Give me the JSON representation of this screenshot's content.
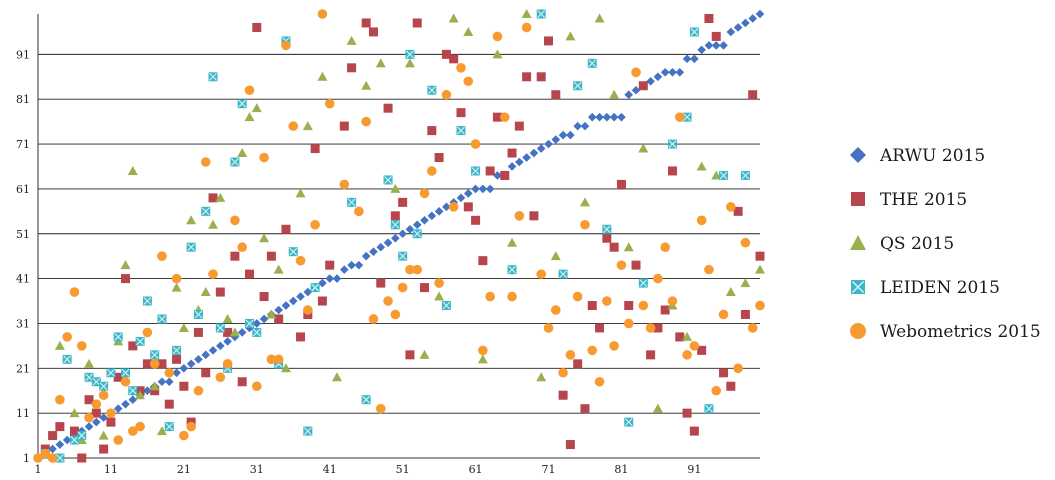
{
  "chart_data": {
    "type": "scatter",
    "title": "",
    "xlabel": "",
    "ylabel": "",
    "xlim": [
      1,
      100
    ],
    "ylim": [
      1,
      100
    ],
    "x_ticks": [
      1,
      11,
      21,
      31,
      41,
      51,
      61,
      71,
      81,
      91
    ],
    "y_ticks": [
      1,
      11,
      21,
      31,
      41,
      51,
      61,
      71,
      81,
      91
    ],
    "grid": "horizontal",
    "legend_position": "right",
    "colors": {
      "ARWU 2015": "#4472c4",
      "THE 2015": "#b7454d",
      "QS 2015": "#98b04e",
      "LEIDEN 2015": "#3cb6c7",
      "Webometrics 2015": "#f79a2f"
    },
    "series": [
      {
        "name": "ARWU 2015",
        "marker": "diamond",
        "x": [
          1,
          2,
          3,
          4,
          5,
          6,
          7,
          8,
          9,
          10,
          11,
          12,
          13,
          14,
          15,
          16,
          17,
          18,
          19,
          20,
          21,
          22,
          23,
          24,
          25,
          26,
          27,
          28,
          29,
          30,
          31,
          32,
          33,
          34,
          35,
          36,
          37,
          38,
          39,
          40,
          41,
          42,
          43,
          44,
          45,
          46,
          47,
          48,
          49,
          50,
          51,
          52,
          53,
          54,
          55,
          56,
          57,
          58,
          59,
          60,
          61,
          62,
          63,
          64,
          65,
          66,
          67,
          68,
          69,
          70,
          71,
          72,
          73,
          74,
          75,
          76,
          77,
          78,
          79,
          80,
          81,
          82,
          83,
          84,
          85,
          86,
          87,
          88,
          89,
          90,
          91,
          92,
          93,
          94,
          95,
          96,
          97,
          98,
          99,
          100
        ],
        "y": [
          1,
          2,
          3,
          4,
          5,
          6,
          7,
          8,
          9,
          10,
          11,
          12,
          13,
          14,
          15,
          16,
          17,
          18,
          18,
          20,
          21,
          22,
          23,
          24,
          25,
          26,
          27,
          28,
          29,
          30,
          31,
          32,
          33,
          34,
          35,
          36,
          37,
          38,
          39,
          40,
          41,
          41,
          43,
          44,
          44,
          46,
          47,
          48,
          49,
          50,
          51,
          52,
          53,
          54,
          55,
          56,
          57,
          58,
          59,
          60,
          61,
          61,
          61,
          64,
          64,
          66,
          67,
          68,
          69,
          70,
          71,
          72,
          73,
          73,
          75,
          75,
          77,
          77,
          77,
          77,
          77,
          82,
          83,
          84,
          85,
          86,
          87,
          87,
          87,
          90,
          90,
          92,
          93,
          93,
          93,
          96,
          97,
          98,
          99,
          100
        ]
      },
      {
        "name": "THE 2015",
        "marker": "square",
        "x": [
          2,
          3,
          4,
          6,
          7,
          8,
          9,
          10,
          11,
          12,
          13,
          14,
          15,
          16,
          17,
          18,
          19,
          20,
          21,
          22,
          23,
          24,
          25,
          26,
          27,
          28,
          29,
          30,
          31,
          32,
          33,
          34,
          35,
          37,
          38,
          39,
          40,
          41,
          43,
          44,
          46,
          47,
          48,
          49,
          50,
          51,
          52,
          53,
          54,
          55,
          56,
          57,
          58,
          59,
          60,
          61,
          62,
          63,
          64,
          65,
          66,
          67,
          68,
          69,
          70,
          71,
          72,
          73,
          74,
          75,
          76,
          77,
          78,
          79,
          80,
          81,
          82,
          83,
          84,
          85,
          86,
          87,
          88,
          89,
          90,
          91,
          92,
          93,
          94,
          95,
          96,
          97,
          98,
          99,
          100
        ],
        "y": [
          3,
          6,
          8,
          7,
          1,
          14,
          11,
          3,
          9,
          19,
          41,
          26,
          16,
          22,
          16,
          22,
          13,
          23,
          17,
          9,
          29,
          20,
          59,
          38,
          29,
          46,
          18,
          42,
          97,
          37,
          46,
          32,
          52,
          28,
          33,
          70,
          36,
          44,
          75,
          88,
          98,
          96,
          40,
          79,
          55,
          58,
          24,
          98,
          39,
          74,
          68,
          91,
          90,
          78,
          57,
          54,
          45,
          65,
          77,
          64,
          69,
          75,
          86,
          55,
          86,
          94,
          82,
          15,
          4,
          22,
          12,
          35,
          30,
          50,
          48,
          62,
          35,
          44,
          84,
          24,
          30,
          34,
          65,
          28,
          11,
          7,
          25,
          99,
          95,
          20,
          17,
          56,
          33,
          82,
          46
        ]
      },
      {
        "name": "QS 2015",
        "marker": "triangle",
        "x": [
          4,
          6,
          7,
          8,
          10,
          12,
          13,
          14,
          15,
          17,
          18,
          20,
          21,
          22,
          23,
          24,
          25,
          26,
          27,
          28,
          29,
          30,
          31,
          32,
          33,
          34,
          35,
          37,
          38,
          40,
          42,
          44,
          46,
          48,
          50,
          52,
          54,
          56,
          58,
          60,
          62,
          64,
          66,
          68,
          70,
          72,
          74,
          76,
          78,
          80,
          82,
          84,
          86,
          88,
          90,
          92,
          94,
          96,
          98,
          100
        ],
        "y": [
          26,
          11,
          5,
          22,
          6,
          27,
          44,
          65,
          15,
          17,
          7,
          39,
          30,
          54,
          34,
          38,
          53,
          59,
          32,
          29,
          69,
          77,
          79,
          50,
          33,
          43,
          21,
          60,
          75,
          86,
          19,
          94,
          84,
          89,
          61,
          89,
          24,
          37,
          99,
          96,
          23,
          91,
          49,
          100,
          19,
          46,
          95,
          58,
          99,
          82,
          48,
          70,
          12,
          35,
          28,
          66,
          64,
          38,
          40,
          43
        ]
      },
      {
        "name": "LEIDEN 2015",
        "marker": "x-square",
        "x": [
          2,
          4,
          5,
          6,
          7,
          8,
          9,
          10,
          11,
          12,
          13,
          14,
          15,
          16,
          17,
          18,
          19,
          20,
          22,
          23,
          24,
          25,
          26,
          27,
          28,
          29,
          30,
          31,
          34,
          35,
          36,
          38,
          39,
          44,
          46,
          49,
          50,
          51,
          52,
          53,
          55,
          57,
          59,
          61,
          66,
          70,
          73,
          75,
          77,
          79,
          82,
          84,
          88,
          90,
          91,
          93,
          95,
          98
        ],
        "y": [
          2,
          1,
          23,
          5,
          6,
          19,
          18,
          17,
          20,
          28,
          20,
          16,
          27,
          36,
          24,
          32,
          8,
          25,
          48,
          33,
          56,
          86,
          30,
          21,
          67,
          80,
          31,
          29,
          22,
          94,
          47,
          7,
          39,
          58,
          14,
          63,
          53,
          46,
          91,
          51,
          83,
          35,
          74,
          65,
          43,
          100,
          42,
          84,
          89,
          52,
          9,
          40,
          71,
          77,
          96,
          12,
          64,
          64
        ]
      },
      {
        "name": "Webometrics 2015",
        "marker": "circle",
        "x": [
          1,
          2,
          3,
          4,
          5,
          6,
          7,
          8,
          9,
          10,
          11,
          12,
          13,
          14,
          15,
          16,
          17,
          18,
          19,
          20,
          21,
          22,
          23,
          24,
          25,
          26,
          27,
          28,
          29,
          30,
          31,
          32,
          33,
          34,
          35,
          36,
          37,
          38,
          39,
          40,
          41,
          43,
          45,
          46,
          47,
          48,
          49,
          50,
          51,
          52,
          53,
          54,
          55,
          56,
          57,
          58,
          59,
          60,
          61,
          62,
          63,
          64,
          65,
          66,
          67,
          68,
          70,
          71,
          72,
          73,
          74,
          75,
          76,
          77,
          78,
          79,
          80,
          81,
          82,
          83,
          84,
          85,
          86,
          87,
          88,
          89,
          90,
          91,
          92,
          93,
          94,
          95,
          96,
          97,
          98,
          99,
          100
        ],
        "y": [
          1,
          2,
          1,
          14,
          28,
          38,
          26,
          10,
          13,
          15,
          11,
          5,
          18,
          7,
          8,
          29,
          22,
          46,
          20,
          41,
          6,
          8,
          16,
          67,
          42,
          19,
          22,
          54,
          48,
          83,
          17,
          68,
          23,
          23,
          93,
          75,
          45,
          34,
          53,
          100,
          80,
          62,
          56,
          76,
          32,
          12,
          36,
          33,
          39,
          43,
          43,
          60,
          65,
          40,
          82,
          57,
          88,
          85,
          71,
          25,
          37,
          95,
          77,
          37,
          55,
          97,
          42,
          30,
          34,
          20,
          24,
          37,
          53,
          25,
          18,
          36,
          26,
          44,
          31,
          87,
          35,
          30,
          41,
          48,
          36,
          77,
          24,
          26,
          54,
          43,
          16,
          33,
          57,
          21,
          49,
          30,
          35
        ]
      }
    ]
  }
}
